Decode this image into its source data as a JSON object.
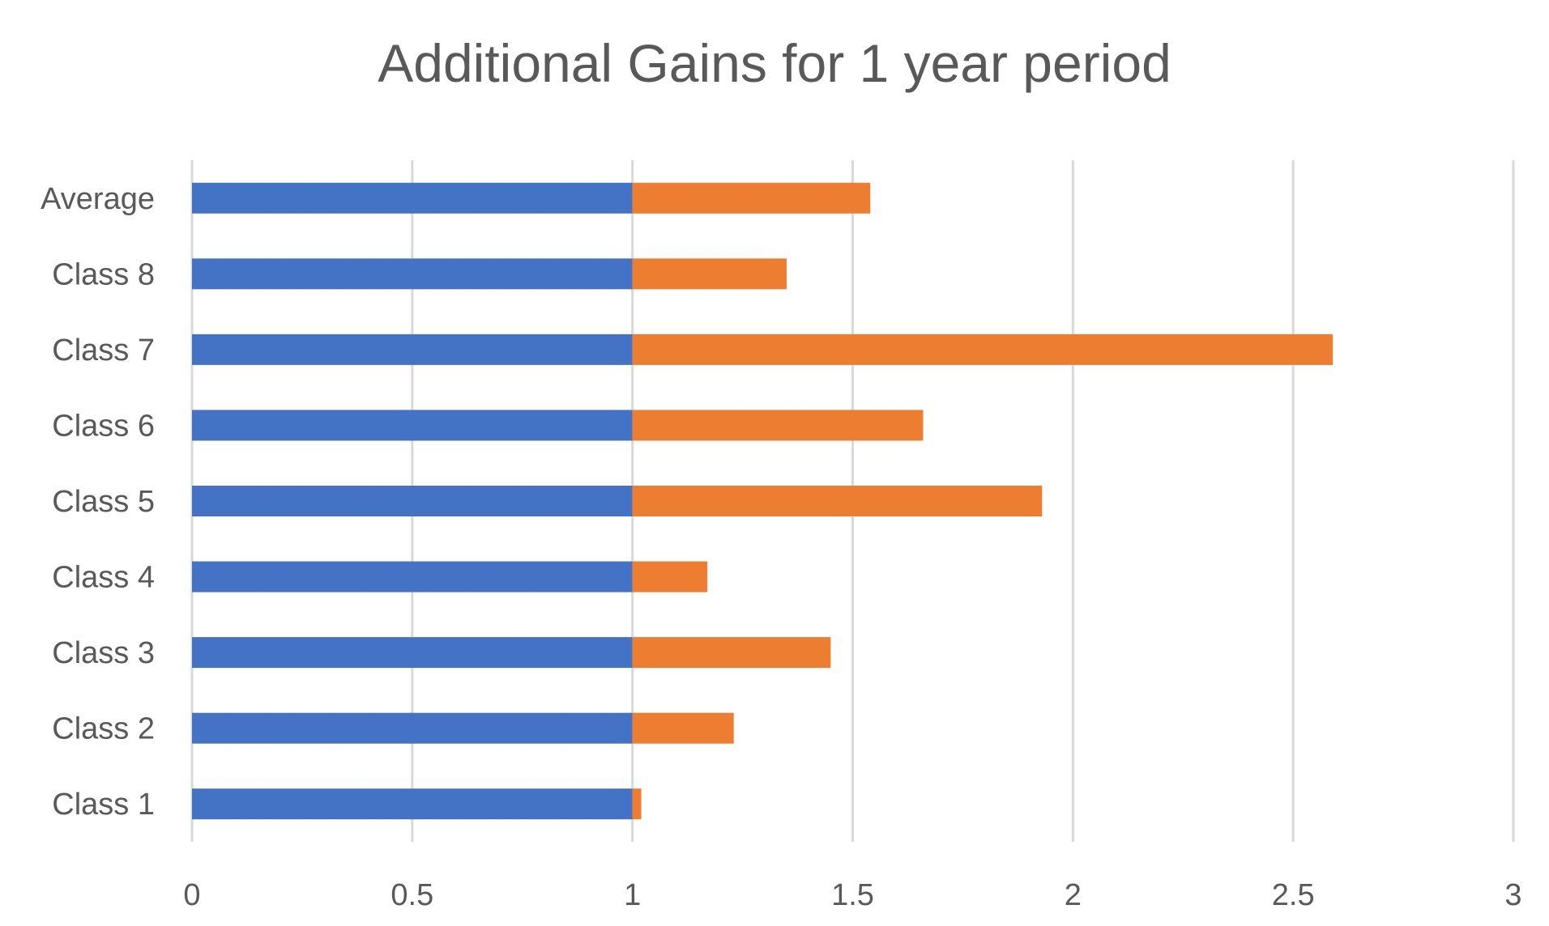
{
  "chart_data": {
    "type": "bar",
    "orientation": "horizontal",
    "stacked": true,
    "title": "Additional Gains for 1 year period",
    "categories": [
      "Class 1",
      "Class 2",
      "Class 3",
      "Class 4",
      "Class 5",
      "Class 6",
      "Class 7",
      "Class 8",
      "Average"
    ],
    "series": [
      {
        "values": [
          1,
          1,
          1,
          1,
          1,
          1,
          1,
          1,
          1
        ],
        "color": "#4472C4"
      },
      {
        "values": [
          0.02,
          0.23,
          0.45,
          0.17,
          0.93,
          0.66,
          1.59,
          0.35,
          0.54
        ],
        "color": "#ED7D31"
      }
    ],
    "xlim": [
      0,
      3
    ],
    "xticks": [
      "0",
      "0.5",
      "1",
      "1.5",
      "2",
      "2.5",
      "3"
    ],
    "grid": true,
    "grid_color": "#D9D9D9",
    "legend": "none"
  }
}
